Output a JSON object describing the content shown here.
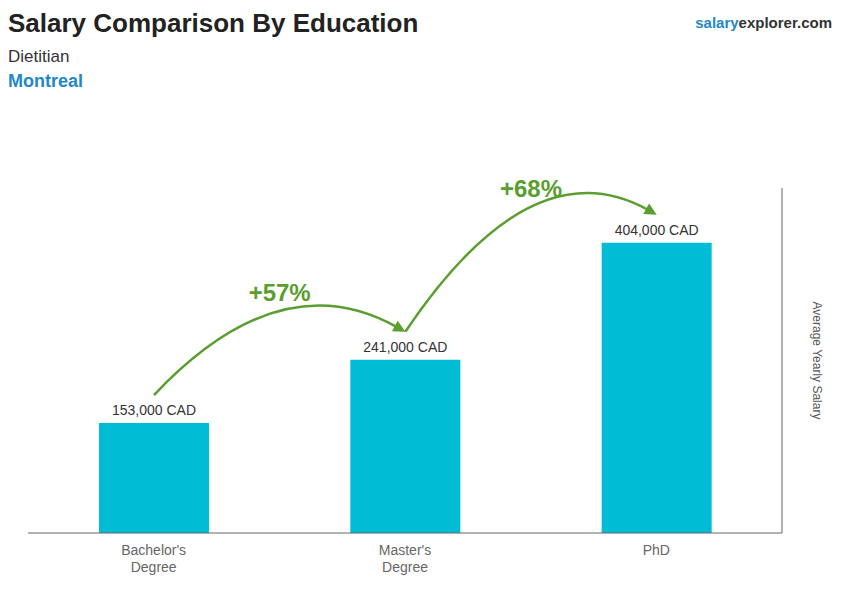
{
  "chart_data": {
    "type": "bar",
    "title": "Salary Comparison By Education",
    "subtitle": [
      "Dietitian",
      "Montreal"
    ],
    "ylabel": "Average Yearly Salary",
    "categories": [
      "Bachelor's\nDegree",
      "Master's\nDegree",
      "PhD"
    ],
    "values": [
      153000,
      241000,
      404000
    ],
    "value_labels": [
      "153,000 CAD",
      "241,000 CAD",
      "404,000 CAD"
    ],
    "data_labels": true,
    "color": "#00bcd4",
    "ylim": [
      0,
      480000
    ],
    "tick_labels": "x",
    "grid": false,
    "annotations": [
      "+57%",
      "+68%",
      "salary",
      "explorer.com"
    ]
  }
}
